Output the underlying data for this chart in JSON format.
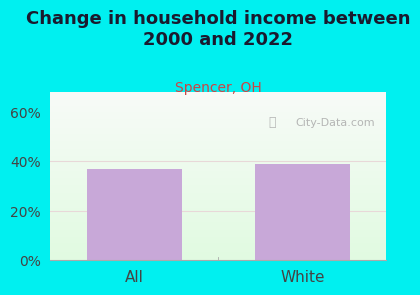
{
  "title": "Change in household income between\n2000 and 2022",
  "subtitle": "Spencer, OH",
  "categories": [
    "All",
    "White"
  ],
  "values": [
    37.0,
    39.0
  ],
  "bar_color": "#c8a8d8",
  "title_color": "#1a1a2e",
  "subtitle_color": "#cc4444",
  "background_color": "#00f0f0",
  "yticks": [
    0,
    20,
    40,
    60
  ],
  "ylim": [
    0,
    68
  ],
  "tick_fontsize": 10,
  "xlabel_fontsize": 11,
  "title_fontsize": 13,
  "subtitle_fontsize": 10,
  "watermark": "City-Data.com",
  "watermark_color": "#aaaaaa",
  "grid_line_color": "#e8d8d8",
  "spine_color": "#aaaaaa"
}
